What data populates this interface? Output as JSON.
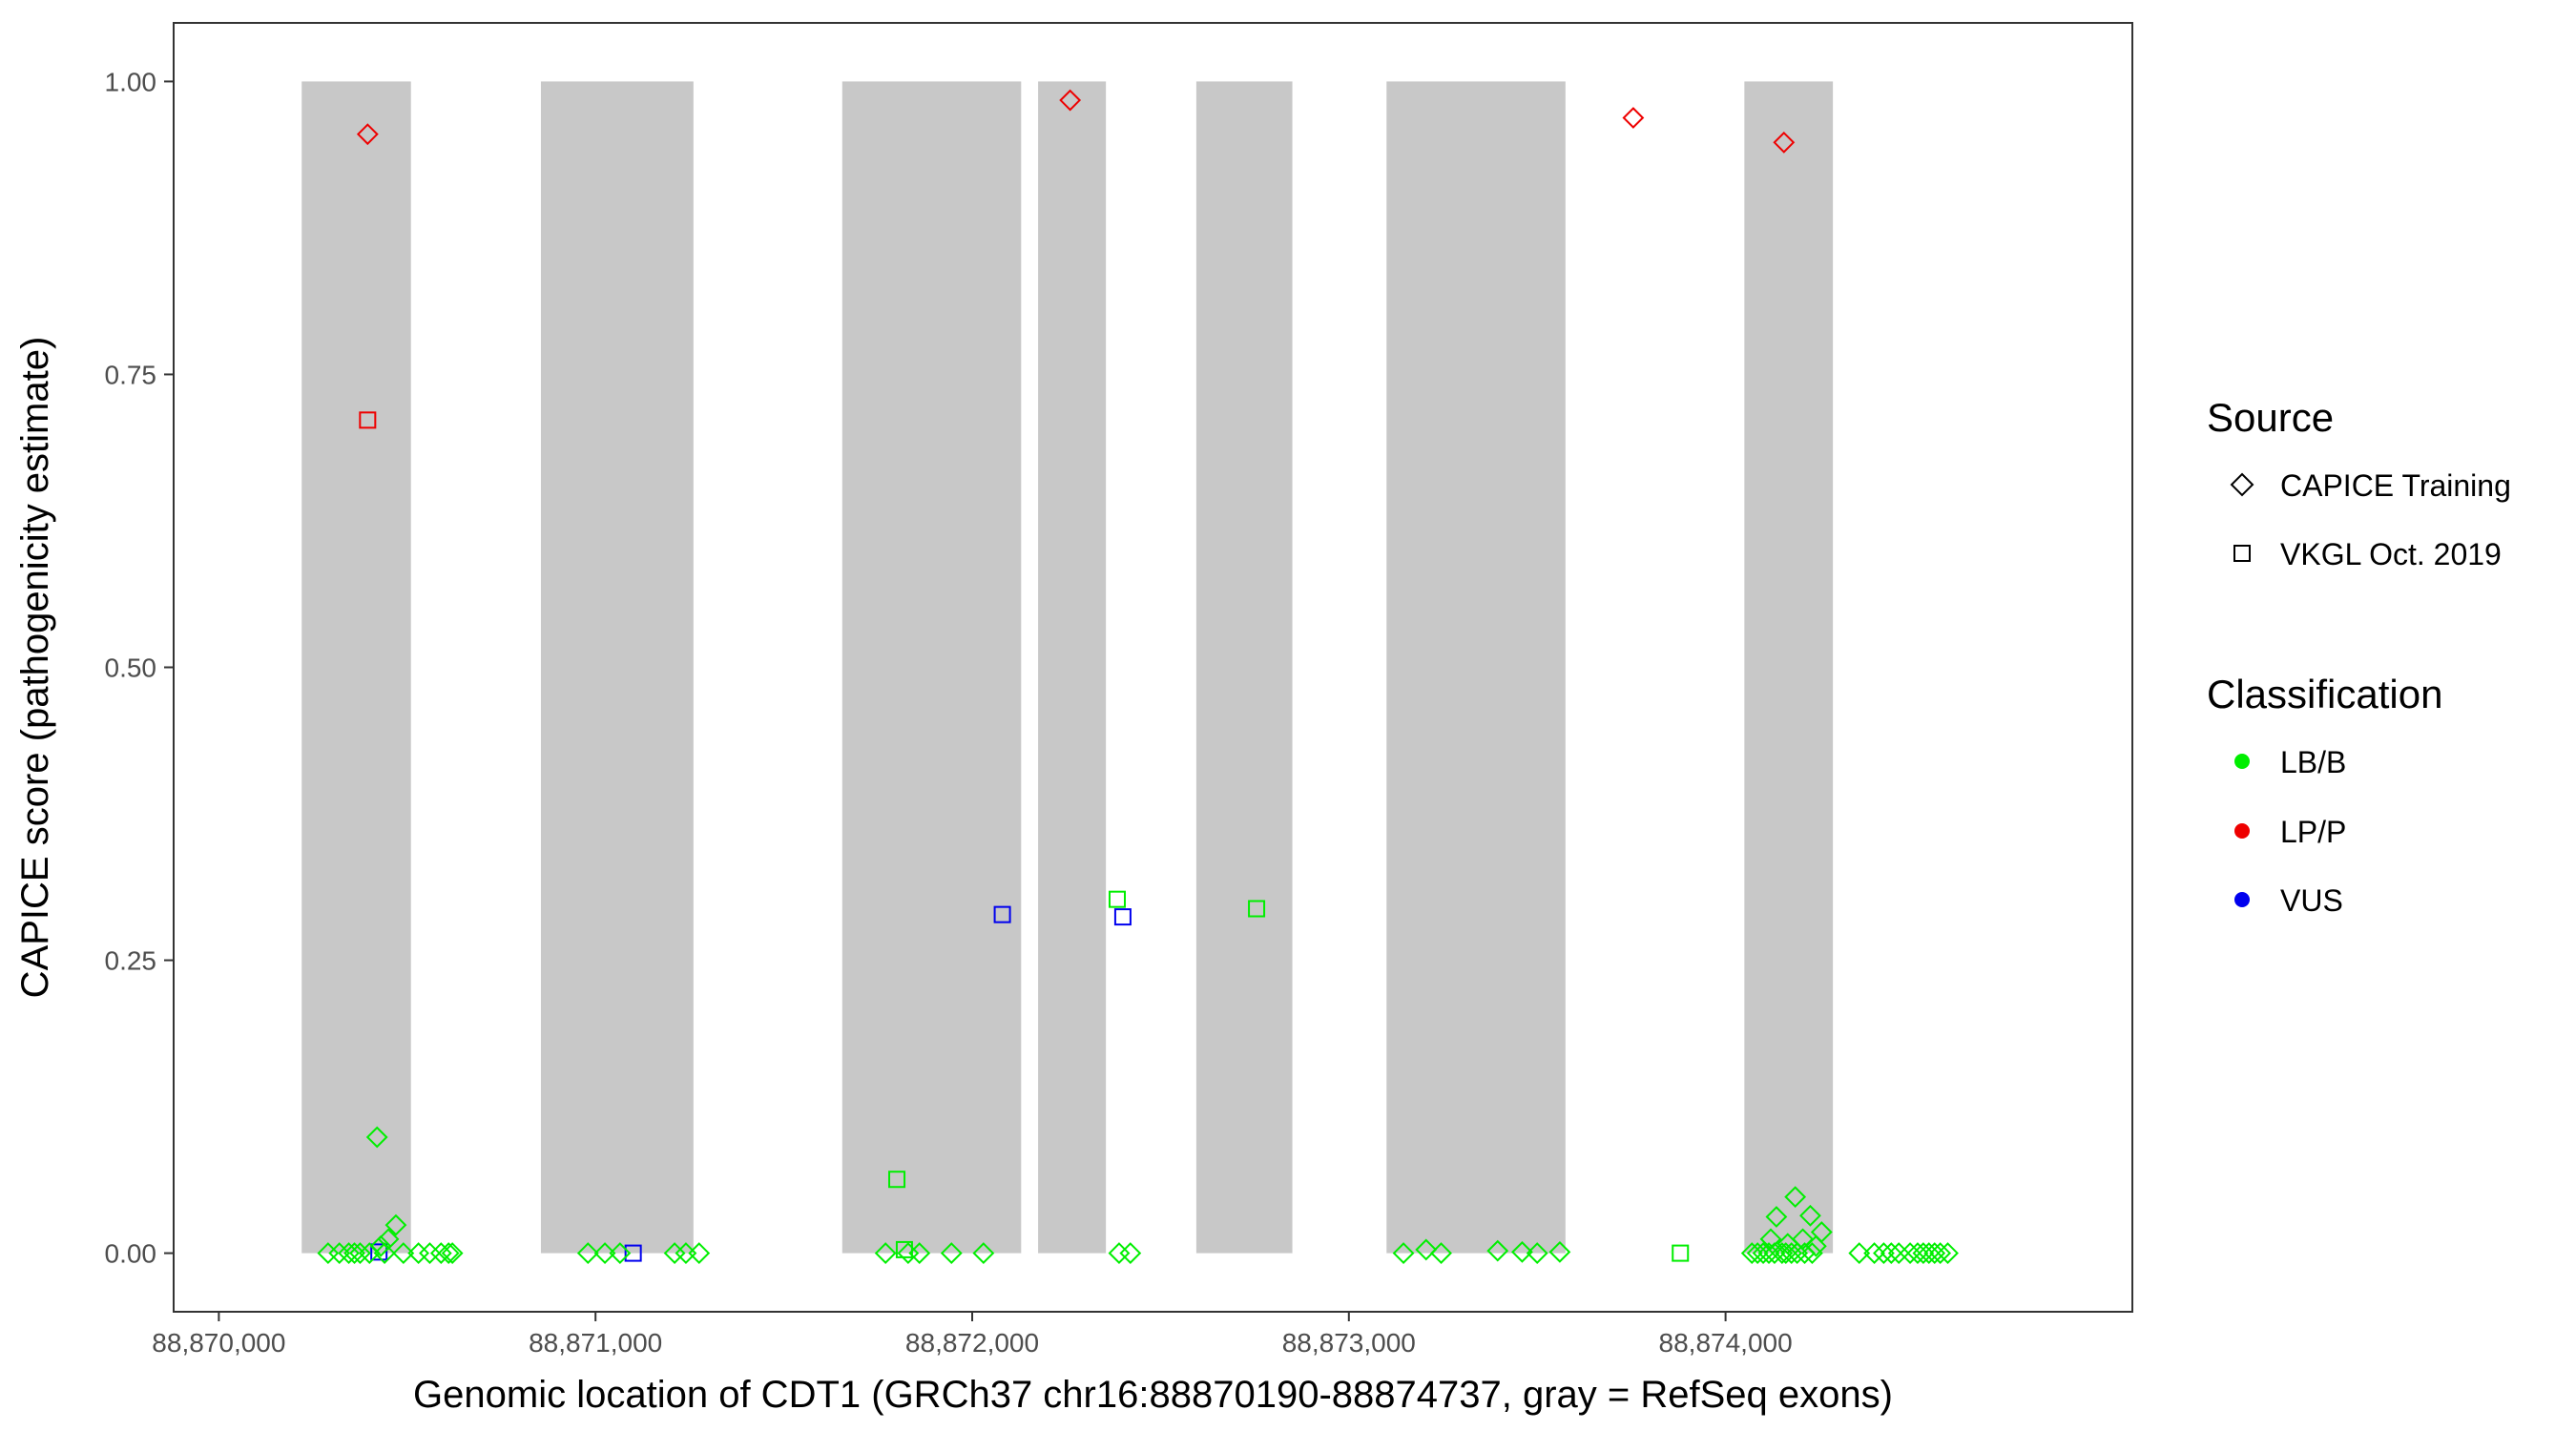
{
  "chart_data": {
    "type": "scatter",
    "xlabel": "Genomic location of CDT1 (GRCh37 chr16:88870190-88874737, gray = RefSeq exons)",
    "ylabel": "CAPICE score (pathogenicity estimate)",
    "xlim": [
      88869880,
      88875080
    ],
    "ylim": [
      -0.05,
      1.05
    ],
    "x_ticks": [
      88870000,
      88871000,
      88872000,
      88873000,
      88874000
    ],
    "x_tick_labels": [
      "88,870,000",
      "88,871,000",
      "88,872,000",
      "88,873,000",
      "88,874,000"
    ],
    "y_ticks": [
      0,
      0.25,
      0.5,
      0.75,
      1.0
    ],
    "y_tick_labels": [
      "0.00",
      "0.25",
      "0.50",
      "0.75",
      "1.00"
    ],
    "grid": false,
    "exons": [
      {
        "start": 88870220,
        "end": 88870510
      },
      {
        "start": 88870855,
        "end": 88871260
      },
      {
        "start": 88871655,
        "end": 88872130
      },
      {
        "start": 88872175,
        "end": 88872355
      },
      {
        "start": 88872595,
        "end": 88872850
      },
      {
        "start": 88873100,
        "end": 88873575
      },
      {
        "start": 88874050,
        "end": 88874285
      }
    ],
    "exon_color": "#c8c8c8",
    "colors": {
      "LB/B": "#00ee00",
      "LP/P": "#ee0000",
      "VUS": "#0000ee"
    },
    "legend": {
      "position": "right",
      "source_title": "Source",
      "source_items": [
        {
          "label": "CAPICE Training",
          "shape": "diamond"
        },
        {
          "label": "VKGL Oct. 2019",
          "shape": "square"
        }
      ],
      "class_title": "Classification",
      "class_items": [
        "LB/B",
        "LP/P",
        "VUS"
      ]
    },
    "series": [
      {
        "source": "CAPICE Training",
        "classification": "LP/P",
        "shape": "diamond",
        "points": [
          [
            88870395,
            0.955
          ],
          [
            88872260,
            0.984
          ],
          [
            88873755,
            0.969
          ],
          [
            88874155,
            0.948
          ]
        ]
      },
      {
        "source": "VKGL Oct. 2019",
        "classification": "LP/P",
        "shape": "square",
        "points": [
          [
            88870395,
            0.711
          ]
        ]
      },
      {
        "source": "VKGL Oct. 2019",
        "classification": "VUS",
        "shape": "square",
        "points": [
          [
            88870425,
            0.001
          ],
          [
            88871100,
            0.0
          ],
          [
            88872080,
            0.289
          ],
          [
            88872400,
            0.287
          ]
        ]
      },
      {
        "source": "VKGL Oct. 2019",
        "classification": "LB/B",
        "shape": "square",
        "points": [
          [
            88871800,
            0.063
          ],
          [
            88871820,
            0.003
          ],
          [
            88872385,
            0.302
          ],
          [
            88872755,
            0.294
          ],
          [
            88873880,
            0.0
          ]
        ]
      },
      {
        "source": "CAPICE Training",
        "classification": "LB/B",
        "shape": "diamond",
        "points": [
          [
            88870420,
            0.099
          ],
          [
            88870470,
            0.024
          ],
          [
            88870450,
            0.012
          ],
          [
            88870430,
            0.006
          ],
          [
            88870290,
            0.0
          ],
          [
            88870320,
            0.0
          ],
          [
            88870345,
            0.0
          ],
          [
            88870360,
            0.0
          ],
          [
            88870375,
            0.0
          ],
          [
            88870400,
            0.0
          ],
          [
            88870440,
            0.0
          ],
          [
            88870490,
            0.0
          ],
          [
            88870530,
            0.0
          ],
          [
            88870560,
            0.0
          ],
          [
            88870590,
            0.0
          ],
          [
            88870610,
            0.0
          ],
          [
            88870620,
            0.0
          ],
          [
            88870980,
            0.0
          ],
          [
            88871025,
            0.0
          ],
          [
            88871065,
            0.0
          ],
          [
            88871210,
            0.0
          ],
          [
            88871240,
            0.0
          ],
          [
            88871275,
            0.0
          ],
          [
            88871770,
            0.0
          ],
          [
            88871830,
            0.0
          ],
          [
            88871860,
            0.0
          ],
          [
            88871945,
            0.0
          ],
          [
            88872030,
            0.0
          ],
          [
            88872390,
            0.0
          ],
          [
            88872420,
            0.0
          ],
          [
            88873145,
            0.0
          ],
          [
            88873205,
            0.003
          ],
          [
            88873245,
            0.0
          ],
          [
            88873395,
            0.002
          ],
          [
            88873460,
            0.001
          ],
          [
            88873500,
            0.0
          ],
          [
            88873560,
            0.001
          ],
          [
            88874185,
            0.048
          ],
          [
            88874135,
            0.031
          ],
          [
            88874225,
            0.032
          ],
          [
            88874255,
            0.018
          ],
          [
            88874205,
            0.012
          ],
          [
            88874165,
            0.008
          ],
          [
            88874120,
            0.012
          ],
          [
            88874240,
            0.006
          ],
          [
            88874070,
            0.0
          ],
          [
            88874085,
            0.0
          ],
          [
            88874100,
            0.0
          ],
          [
            88874115,
            0.0
          ],
          [
            88874130,
            0.0
          ],
          [
            88874150,
            0.0
          ],
          [
            88874160,
            0.0
          ],
          [
            88874175,
            0.0
          ],
          [
            88874190,
            0.0
          ],
          [
            88874210,
            0.0
          ],
          [
            88874230,
            0.0
          ],
          [
            88874355,
            0.0
          ],
          [
            88874395,
            0.0
          ],
          [
            88874420,
            0.0
          ],
          [
            88874440,
            0.0
          ],
          [
            88874460,
            0.0
          ],
          [
            88874490,
            0.0
          ],
          [
            88874510,
            0.0
          ],
          [
            88874525,
            0.0
          ],
          [
            88874540,
            0.0
          ],
          [
            88874555,
            0.0
          ],
          [
            88874570,
            0.0
          ],
          [
            88874590,
            0.0
          ]
        ]
      }
    ]
  }
}
